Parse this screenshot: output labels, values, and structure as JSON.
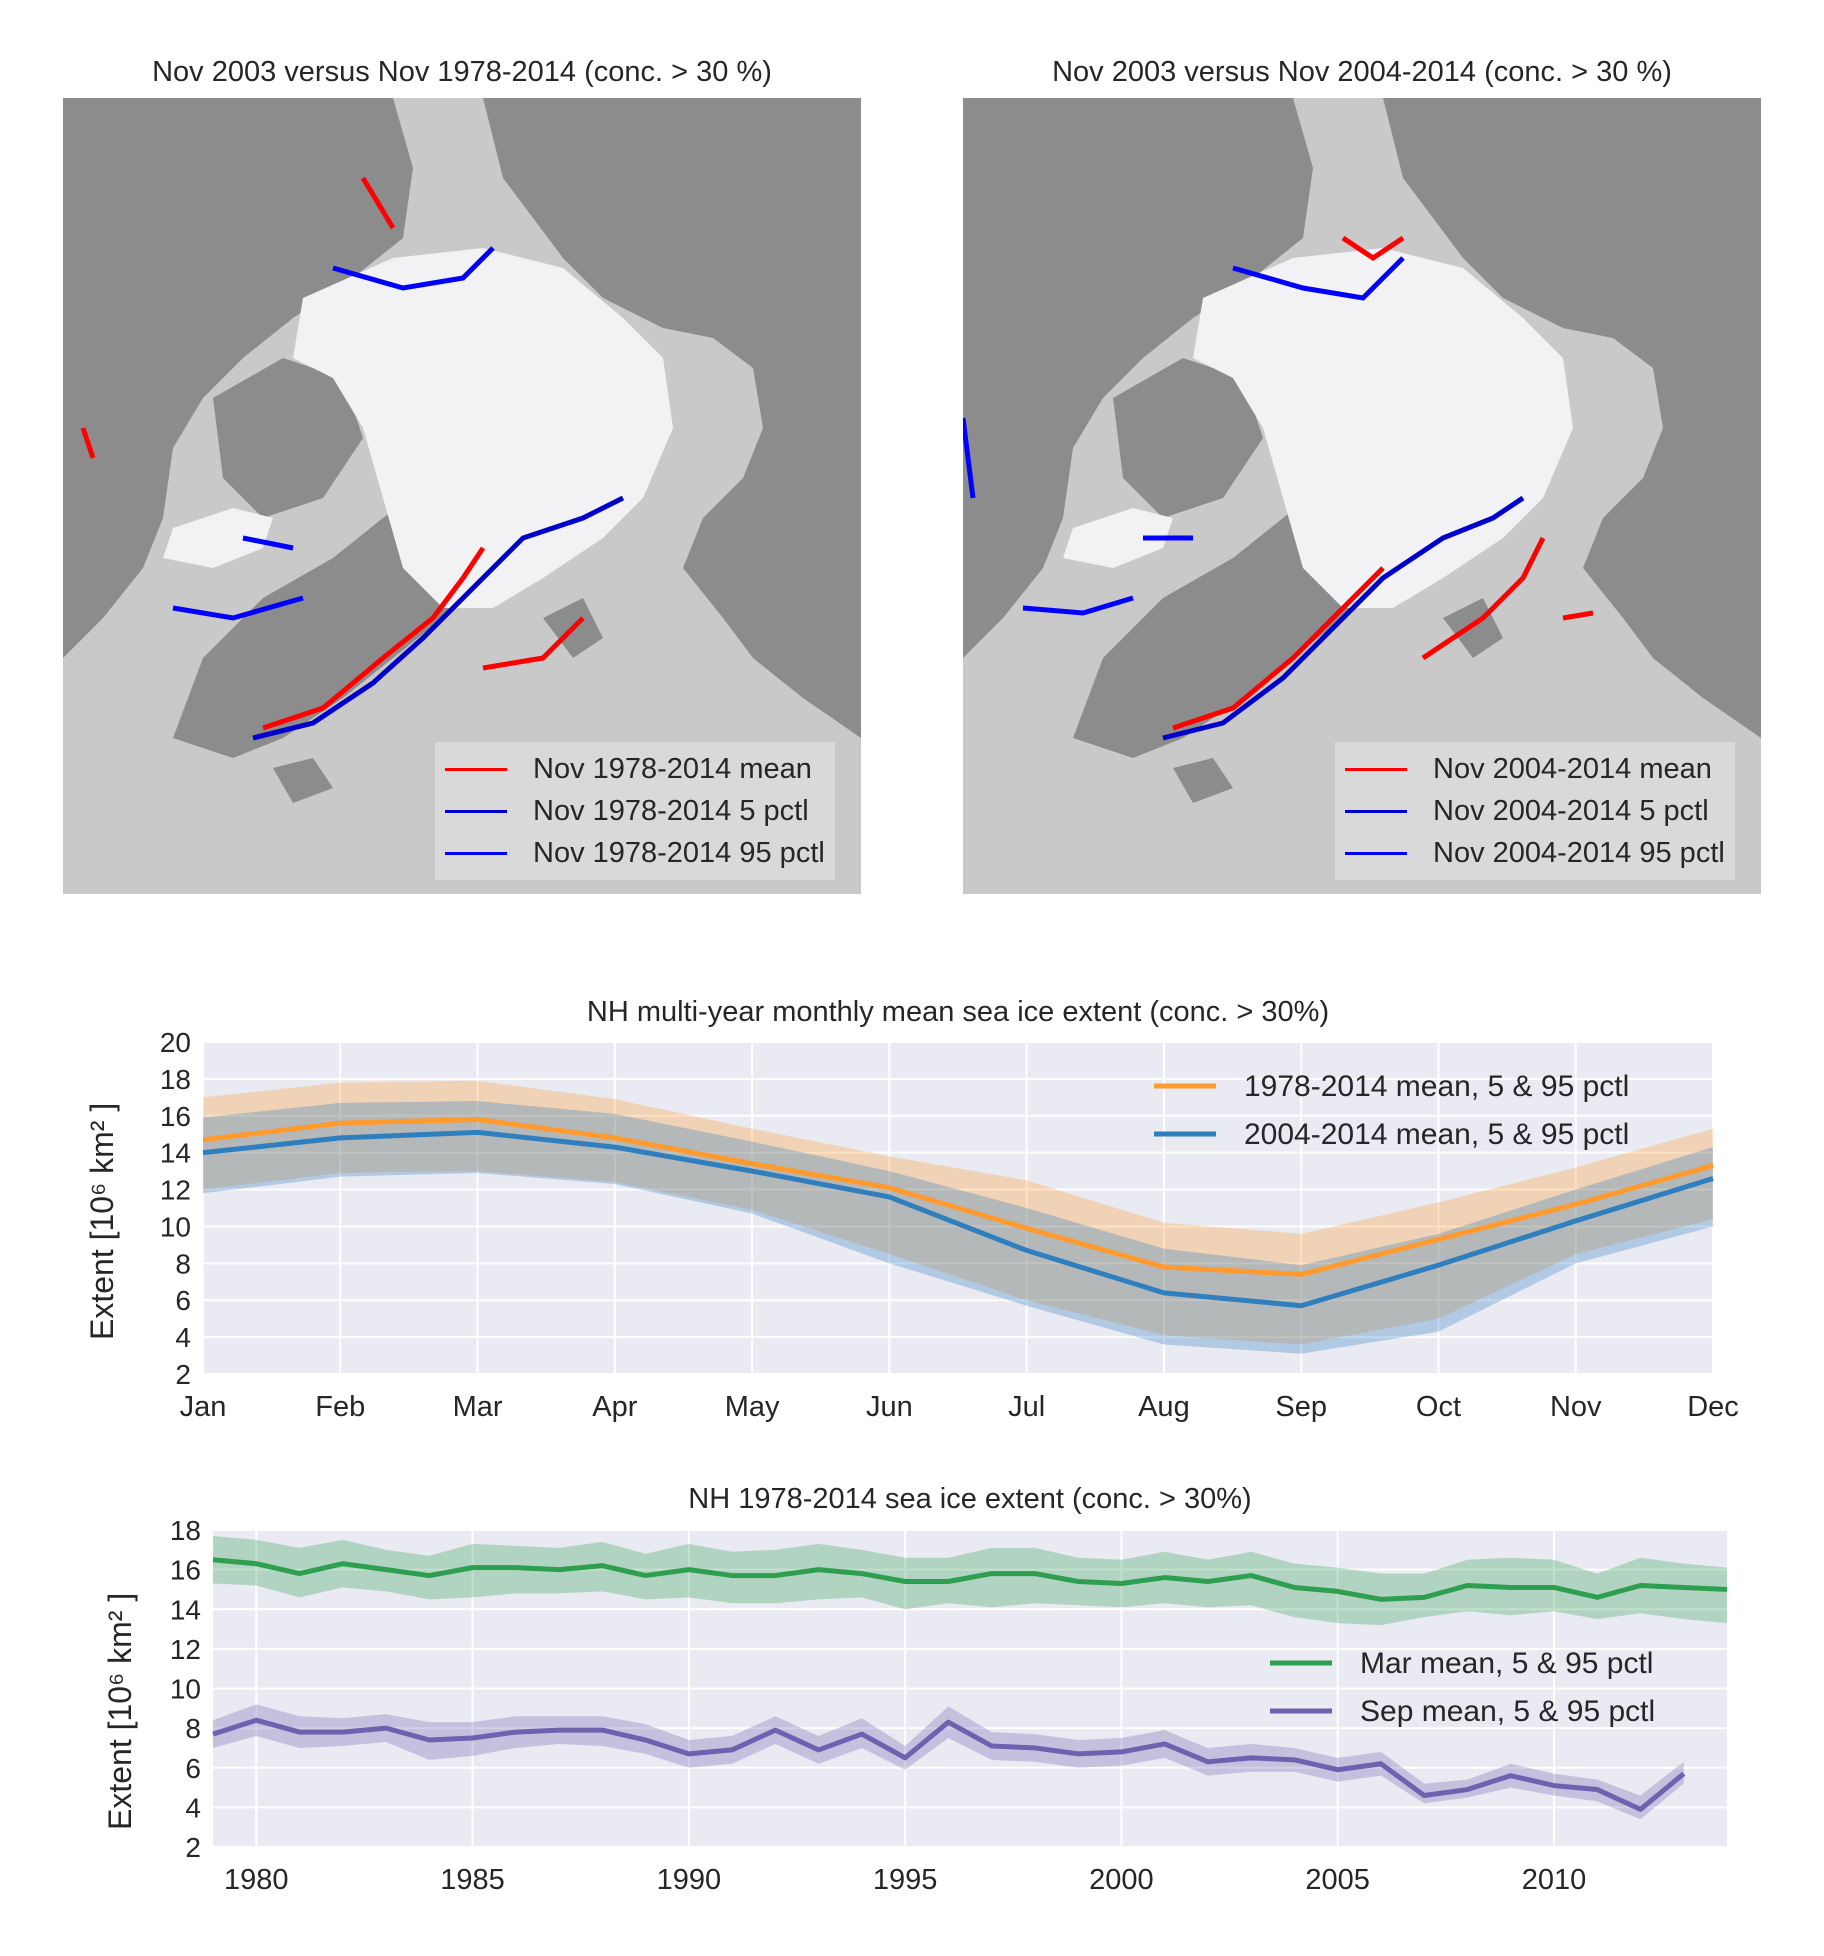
{
  "maps": [
    {
      "title": "Nov 2003 versus Nov 1978-2014 (conc. > 30 %)",
      "legend": [
        {
          "label": "Nov 1978-2014 mean",
          "color": "#ff0000"
        },
        {
          "label": "Nov 1978-2014 5 pctl",
          "color": "#0000cc"
        },
        {
          "label": "Nov 1978-2014 95 pctl",
          "color": "#0000ff"
        }
      ]
    },
    {
      "title": "Nov 2003 versus Nov 2004-2014 (conc. > 30 %)",
      "legend": [
        {
          "label": "Nov 2004-2014 mean",
          "color": "#ff0000"
        },
        {
          "label": "Nov 2004-2014 5 pctl",
          "color": "#0000cc"
        },
        {
          "label": "Nov 2004-2014 95 pctl",
          "color": "#0000ff"
        }
      ]
    }
  ],
  "chart_data": [
    {
      "type": "line",
      "title": "NH multi-year monthly mean sea ice extent (conc. > 30%)",
      "ylabel": "Extent [10⁶  km² ]",
      "xlabel": "",
      "categories": [
        "Jan",
        "Feb",
        "Mar",
        "Apr",
        "May",
        "Jun",
        "Jul",
        "Aug",
        "Sep",
        "Oct",
        "Nov",
        "Dec"
      ],
      "ylim": [
        2,
        20
      ],
      "yticks": [
        2,
        4,
        6,
        8,
        10,
        12,
        14,
        16,
        18,
        20
      ],
      "grid": true,
      "legend_position": "top-right",
      "series": [
        {
          "name": "1978-2014 mean, 5 & 95 pctl",
          "color": "#ff9a2e",
          "mean": [
            14.7,
            15.6,
            15.8,
            14.8,
            13.4,
            12.1,
            9.9,
            7.8,
            7.4,
            9.3,
            11.2,
            13.3
          ],
          "p5": [
            12.0,
            12.9,
            13.0,
            12.4,
            10.9,
            8.5,
            6.0,
            4.1,
            3.6,
            5.0,
            8.5,
            10.4
          ],
          "p95": [
            17.0,
            17.8,
            17.9,
            16.9,
            15.3,
            13.8,
            12.5,
            10.2,
            9.6,
            11.3,
            13.2,
            15.3
          ]
        },
        {
          "name": "2004-2014 mean, 5 & 95 pctl",
          "color": "#2f7fbf",
          "mean": [
            14.0,
            14.8,
            15.1,
            14.3,
            13.0,
            11.6,
            8.7,
            6.4,
            5.7,
            7.9,
            10.3,
            12.6
          ],
          "p5": [
            11.8,
            12.7,
            12.9,
            12.3,
            10.7,
            8.0,
            5.7,
            3.6,
            3.1,
            4.3,
            8.0,
            10.0
          ],
          "p95": [
            15.9,
            16.7,
            16.8,
            16.1,
            14.6,
            13.0,
            11.0,
            8.8,
            7.9,
            9.6,
            12.0,
            14.3
          ]
        }
      ]
    },
    {
      "type": "line",
      "title": "NH 1978-2014 sea ice extent (conc. > 30%)",
      "ylabel": "Extent [10⁶  km² ]",
      "xlabel": "",
      "xlim": [
        1979,
        2014
      ],
      "xticks": [
        1980,
        1985,
        1990,
        1995,
        2000,
        2005,
        2010
      ],
      "ylim": [
        2,
        18
      ],
      "yticks": [
        2,
        4,
        6,
        8,
        10,
        12,
        14,
        16,
        18
      ],
      "grid": true,
      "legend_position": "center-right",
      "series": [
        {
          "name": "Mar mean, 5 & 95 pctl",
          "color": "#2e9e50",
          "x": [
            1979,
            1980,
            1981,
            1982,
            1983,
            1984,
            1985,
            1986,
            1987,
            1988,
            1989,
            1990,
            1991,
            1992,
            1993,
            1994,
            1995,
            1996,
            1997,
            1998,
            1999,
            2000,
            2001,
            2002,
            2003,
            2004,
            2005,
            2006,
            2007,
            2008,
            2009,
            2010,
            2011,
            2012,
            2013,
            2014
          ],
          "mean": [
            16.5,
            16.3,
            15.8,
            16.3,
            16.0,
            15.7,
            16.1,
            16.1,
            16.0,
            16.2,
            15.7,
            16.0,
            15.7,
            15.7,
            16.0,
            15.8,
            15.4,
            15.4,
            15.8,
            15.8,
            15.4,
            15.3,
            15.6,
            15.4,
            15.7,
            15.1,
            14.9,
            14.5,
            14.6,
            15.2,
            15.1,
            15.1,
            14.6,
            15.2,
            15.1,
            15.0
          ],
          "p5": [
            15.3,
            15.2,
            14.6,
            15.1,
            14.9,
            14.5,
            14.6,
            14.8,
            14.8,
            14.9,
            14.5,
            14.6,
            14.3,
            14.3,
            14.5,
            14.6,
            14.0,
            14.3,
            14.1,
            14.3,
            14.2,
            14.1,
            14.3,
            14.1,
            14.2,
            13.6,
            13.3,
            13.2,
            13.6,
            13.9,
            13.7,
            13.9,
            13.5,
            13.8,
            13.5,
            13.3
          ],
          "p95": [
            17.7,
            17.5,
            17.1,
            17.5,
            17.0,
            16.7,
            17.3,
            17.2,
            17.1,
            17.4,
            16.8,
            17.3,
            16.9,
            17.0,
            17.3,
            17.0,
            16.6,
            16.6,
            17.1,
            17.1,
            16.6,
            16.5,
            16.9,
            16.5,
            16.9,
            16.3,
            16.1,
            15.8,
            15.8,
            16.5,
            16.6,
            16.5,
            15.8,
            16.6,
            16.3,
            16.1
          ]
        },
        {
          "name": "Sep mean, 5 & 95 pctl",
          "color": "#7060b0",
          "x": [
            1979,
            1980,
            1981,
            1982,
            1983,
            1984,
            1985,
            1986,
            1987,
            1988,
            1989,
            1990,
            1991,
            1992,
            1993,
            1994,
            1995,
            1996,
            1997,
            1998,
            1999,
            2000,
            2001,
            2002,
            2003,
            2004,
            2005,
            2006,
            2007,
            2008,
            2009,
            2010,
            2011,
            2012,
            2013
          ],
          "mean": [
            7.7,
            8.4,
            7.8,
            7.8,
            8.0,
            7.4,
            7.5,
            7.8,
            7.9,
            7.9,
            7.4,
            6.7,
            6.9,
            7.9,
            6.9,
            7.7,
            6.5,
            8.3,
            7.1,
            7.0,
            6.7,
            6.8,
            7.2,
            6.3,
            6.5,
            6.4,
            5.9,
            6.2,
            4.6,
            4.9,
            5.6,
            5.1,
            4.9,
            3.9,
            5.7
          ],
          "p5": [
            7.0,
            7.6,
            7.0,
            7.1,
            7.3,
            6.4,
            6.6,
            7.0,
            7.2,
            7.1,
            6.7,
            6.0,
            6.2,
            7.2,
            6.2,
            7.0,
            5.9,
            7.5,
            6.4,
            6.3,
            6.0,
            6.1,
            6.5,
            5.6,
            5.8,
            5.8,
            5.3,
            5.6,
            4.2,
            4.5,
            5.0,
            4.6,
            4.3,
            3.4,
            5.2
          ],
          "p95": [
            8.4,
            9.2,
            8.6,
            8.5,
            8.7,
            8.3,
            8.3,
            8.6,
            8.6,
            8.6,
            8.2,
            7.4,
            7.6,
            8.6,
            7.6,
            8.5,
            7.1,
            9.1,
            7.8,
            7.7,
            7.4,
            7.5,
            7.9,
            7.0,
            7.2,
            7.0,
            6.5,
            6.8,
            5.2,
            5.4,
            6.2,
            5.7,
            5.4,
            4.6,
            6.3
          ]
        }
      ]
    }
  ]
}
